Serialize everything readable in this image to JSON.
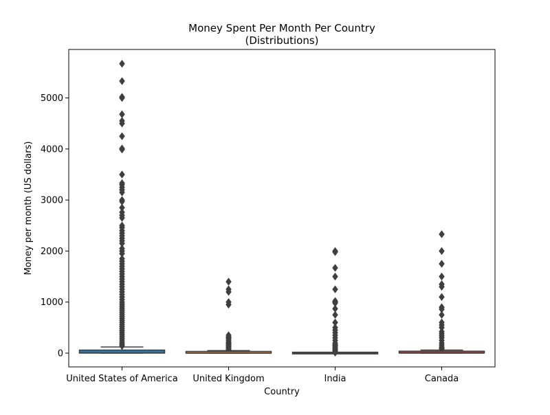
{
  "chart_data": {
    "type": "box",
    "title": "Money Spent Per Month Per Country",
    "subtitle": "(Distributions)",
    "xlabel": "Country",
    "ylabel": "Money per month (US dollars)",
    "ylim": [
      -270,
      5950
    ],
    "yticks": [
      0,
      1000,
      2000,
      3000,
      4000,
      5000
    ],
    "categories": [
      "United States of America",
      "United Kingdom",
      "India",
      "Canada"
    ],
    "series": [
      {
        "category": "United States of America",
        "box_color": "#3274a1",
        "q1": 0,
        "median": 3,
        "q3": 60,
        "whisker_low": 0,
        "whisker_high": 120,
        "outliers": [
          5670,
          5330,
          5020,
          5000,
          4680,
          4550,
          4500,
          4250,
          4010,
          3990,
          3500,
          3330,
          3300,
          3250,
          3200,
          3150,
          3000,
          2970,
          2850,
          2760,
          2700,
          2650,
          2500,
          2460,
          2400,
          2350,
          2300,
          2250,
          2200,
          2150,
          2050,
          2000,
          1950,
          1850,
          1800,
          1750,
          1700,
          1650,
          1600,
          1550,
          1500,
          1450,
          1400,
          1350,
          1300,
          1250,
          1200,
          1150,
          1100,
          1050,
          1000,
          960,
          920,
          880,
          840,
          800,
          760,
          720,
          680,
          640,
          600,
          560,
          520,
          480,
          440,
          400,
          360,
          320,
          280,
          240,
          200,
          170,
          140
        ]
      },
      {
        "category": "United Kingdom",
        "box_color": "#e1812c",
        "q1": 0,
        "median": 0,
        "q3": 20,
        "whisker_low": 0,
        "whisker_high": 50,
        "outliers": [
          1400,
          1250,
          1200,
          1000,
          950,
          350,
          320,
          300,
          280,
          250,
          220,
          200,
          180,
          160,
          140,
          120,
          100,
          80,
          60
        ]
      },
      {
        "category": "India",
        "box_color": "#3a923a",
        "q1": 0,
        "median": 0,
        "q3": 5,
        "whisker_low": 0,
        "whisker_high": 15,
        "outliers": [
          2000,
          1980,
          1670,
          1500,
          1250,
          1020,
          1000,
          980,
          870,
          750,
          600,
          500,
          450,
          400,
          350,
          300,
          250,
          200,
          170,
          150,
          130,
          100,
          80,
          60,
          40,
          20,
          10
        ]
      },
      {
        "category": "Canada",
        "box_color": "#c03d3e",
        "q1": 0,
        "median": 0,
        "q3": 25,
        "whisker_low": 0,
        "whisker_high": 60,
        "outliers": [
          2330,
          2000,
          1750,
          1500,
          1350,
          1300,
          1100,
          900,
          860,
          750,
          600,
          550,
          500,
          420,
          380,
          340,
          300,
          250,
          200,
          160,
          120,
          100,
          80
        ]
      }
    ]
  }
}
